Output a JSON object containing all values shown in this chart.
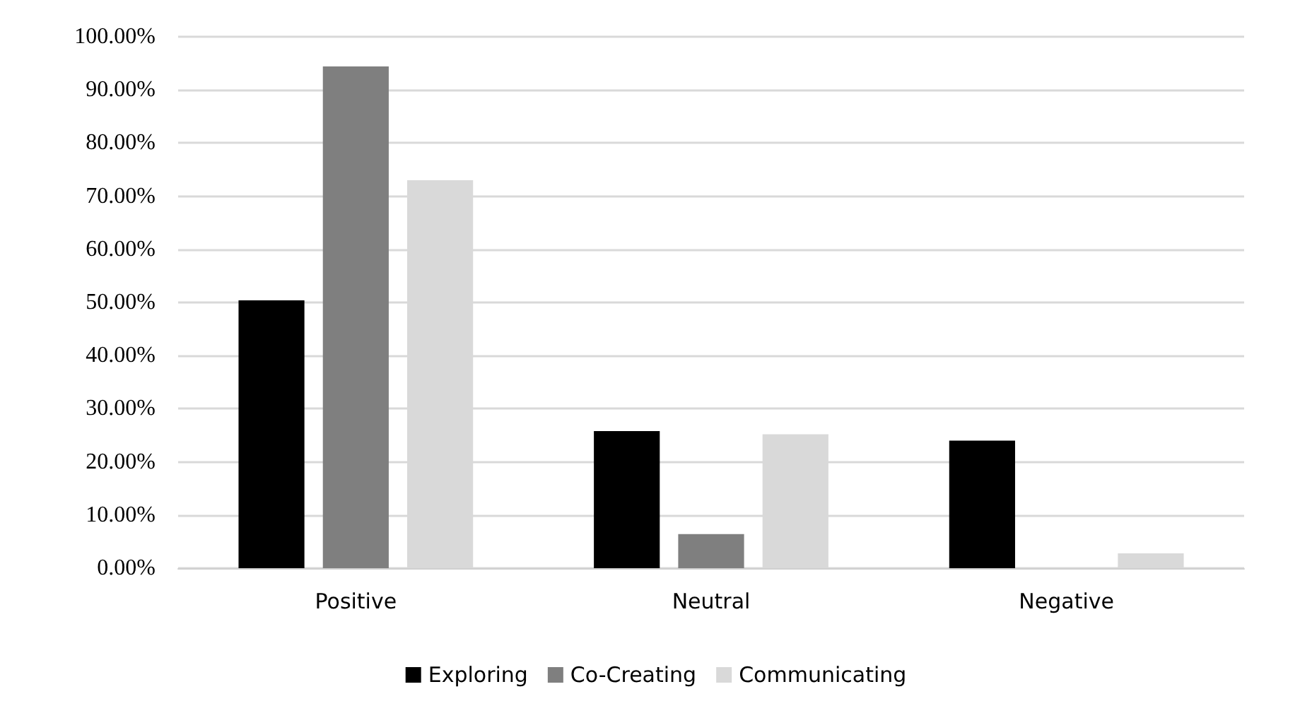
{
  "chart_data": {
    "type": "bar",
    "categories": [
      "Positive",
      "Neutral",
      "Negative"
    ],
    "series": [
      {
        "name": "Exploring",
        "color": "#000000",
        "values": [
          50.4,
          25.8,
          24.0
        ]
      },
      {
        "name": "Co-Creating",
        "color": "#7f7f7f",
        "values": [
          94.4,
          6.4,
          0
        ]
      },
      {
        "name": "Communicating",
        "color": "#d9d9d9",
        "values": [
          73.0,
          25.2,
          2.8
        ]
      }
    ],
    "ylim": [
      0,
      100
    ],
    "yticks": [
      {
        "value": 0,
        "label": "0.00%"
      },
      {
        "value": 10,
        "label": "10.00%"
      },
      {
        "value": 20,
        "label": "20.00%"
      },
      {
        "value": 30,
        "label": "30.00%"
      },
      {
        "value": 40,
        "label": "40.00%"
      },
      {
        "value": 50,
        "label": "50.00%"
      },
      {
        "value": 60,
        "label": "60.00%"
      },
      {
        "value": 70,
        "label": "70.00%"
      },
      {
        "value": 80,
        "label": "80.00%"
      },
      {
        "value": 90,
        "label": "90.00%"
      },
      {
        "value": 100,
        "label": "100.00%"
      }
    ],
    "grid": "y",
    "legend": "bottom"
  }
}
